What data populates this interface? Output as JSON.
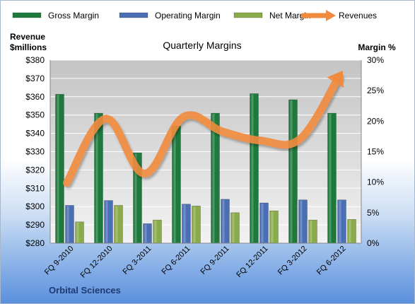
{
  "chart_data": {
    "type": "bar",
    "title": "Quarterly Margins",
    "footer": "Orbital Sciences",
    "categories": [
      "FQ 9-2010",
      "FQ 12-2010",
      "FQ 3-2011",
      "FQ 6-2011",
      "FQ 9-2011",
      "FQ 12-2011",
      "FQ 3-2012",
      "FQ 6-2012"
    ],
    "left_axis": {
      "label_line1": "Revenue",
      "label_line2": "$millions",
      "min": 280,
      "max": 380,
      "step": 10,
      "tick_prefix": "$"
    },
    "right_axis": {
      "label": "Margin %",
      "min": 0,
      "max": 30,
      "step": 5,
      "tick_suffix": "%"
    },
    "series": [
      {
        "name": "Gross Margin",
        "axis": "right",
        "kind": "bar",
        "color": "#1e7a3c",
        "values": [
          24.4,
          21.3,
          14.8,
          19.2,
          21.3,
          24.5,
          23.5,
          21.3
        ]
      },
      {
        "name": "Operating Margin",
        "axis": "right",
        "kind": "bar",
        "color": "#4a6fb5",
        "values": [
          6.2,
          7.0,
          3.2,
          6.4,
          7.2,
          6.6,
          7.1,
          7.1
        ]
      },
      {
        "name": "Net Margin",
        "axis": "right",
        "kind": "bar",
        "color": "#8aab4a",
        "values": [
          3.5,
          6.2,
          3.8,
          6.1,
          5.0,
          5.3,
          3.8,
          3.9
        ]
      },
      {
        "name": "Revenues",
        "axis": "left",
        "kind": "line",
        "color": "#f08a3c",
        "values": [
          313,
          348,
          318,
          349,
          341,
          336,
          337,
          371
        ]
      }
    ],
    "grid": true,
    "legend": "top"
  }
}
